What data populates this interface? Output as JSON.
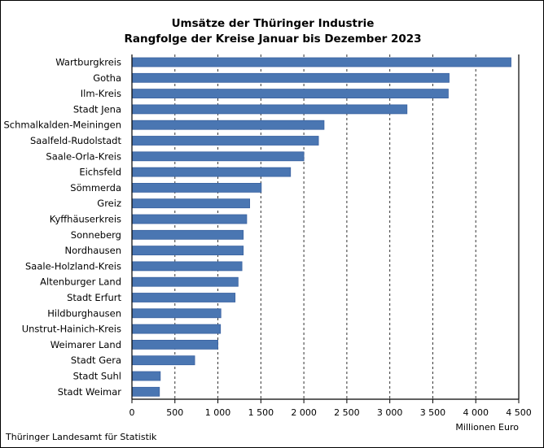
{
  "chart_data": {
    "type": "bar",
    "orientation": "horizontal",
    "title": [
      "Umsätze der Thüringer Industrie",
      "Rangfolge der Kreise Januar bis Dezember 2023"
    ],
    "xlabel": "Millionen Euro",
    "xlim": [
      0,
      4500
    ],
    "xticks": [
      "0",
      "500",
      "1 000",
      "1 500",
      "2 000",
      "2 500",
      "3 000",
      "3 500",
      "4 000",
      "4 500"
    ],
    "grid": "vertical dashed",
    "bar_color": "#4a76b2",
    "categories": [
      "Wartburgkreis",
      "Gotha",
      "Ilm-Kreis",
      "Stadt Jena",
      "Schmalkalden-Meiningen",
      "Saalfeld-Rudolstadt",
      "Saale-Orla-Kreis",
      "Eichsfeld",
      "Sömmerda",
      "Greiz",
      "Kyffhäuserkreis",
      "Sonneberg",
      "Nordhausen",
      "Saale-Holzland-Kreis",
      "Altenburger Land",
      "Stadt Erfurt",
      "Hildburghausen",
      "Unstrut-Hainich-Kreis",
      "Weimarer Land",
      "Stadt Gera",
      "Stadt Suhl",
      "Stadt Weimar"
    ],
    "values": [
      4410,
      3690,
      3680,
      3200,
      2235,
      2170,
      2000,
      1845,
      1505,
      1370,
      1335,
      1295,
      1295,
      1280,
      1235,
      1200,
      1035,
      1030,
      1000,
      730,
      330,
      320
    ]
  },
  "source": "Thüringer Landesamt für Statistik"
}
